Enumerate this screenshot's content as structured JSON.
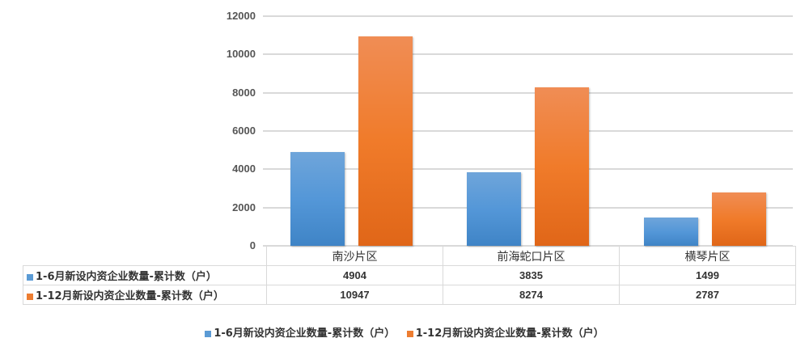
{
  "chart_data": {
    "type": "bar",
    "title": "",
    "xlabel": "",
    "ylabel": "",
    "ylim": [
      0,
      12000
    ],
    "yticks": [
      0,
      2000,
      4000,
      6000,
      8000,
      10000,
      12000
    ],
    "grid": true,
    "legend_position": "bottom",
    "data_table": true,
    "categories": [
      "南沙片区",
      "前海蛇口片区",
      "横琴片区"
    ],
    "series": [
      {
        "name": "1-6月新设内资企业数量-累计数（户）",
        "color": "#5b9bd5",
        "values": [
          4904,
          3835,
          1499
        ]
      },
      {
        "name": "1-12月新设内资企业数量-累计数（户）",
        "color": "#ed7d31",
        "values": [
          10947,
          8274,
          2787
        ]
      }
    ]
  },
  "axis": {
    "ticks": [
      {
        "label": "12000",
        "value": 12000
      },
      {
        "label": "10000",
        "value": 10000
      },
      {
        "label": "8000",
        "value": 8000
      },
      {
        "label": "6000",
        "value": 6000
      },
      {
        "label": "4000",
        "value": 4000
      },
      {
        "label": "2000",
        "value": 2000
      },
      {
        "label": "0",
        "value": 0
      }
    ]
  },
  "table": {
    "categories": [
      "南沙片区",
      "前海蛇口片区",
      "横琴片区"
    ],
    "rows": [
      {
        "label": "1-6月新设内资企业数量-累计数（户）",
        "values": [
          "4904",
          "3835",
          "1499"
        ]
      },
      {
        "label": "1-12月新设内资企业数量-累计数（户）",
        "values": [
          "10947",
          "8274",
          "2787"
        ]
      }
    ]
  },
  "legend": {
    "items": [
      {
        "label": "1-6月新设内资企业数量-累计数（户）",
        "color": "#5b9bd5"
      },
      {
        "label": "1-12月新设内资企业数量-累计数（户）",
        "color": "#ed7d31"
      }
    ]
  }
}
